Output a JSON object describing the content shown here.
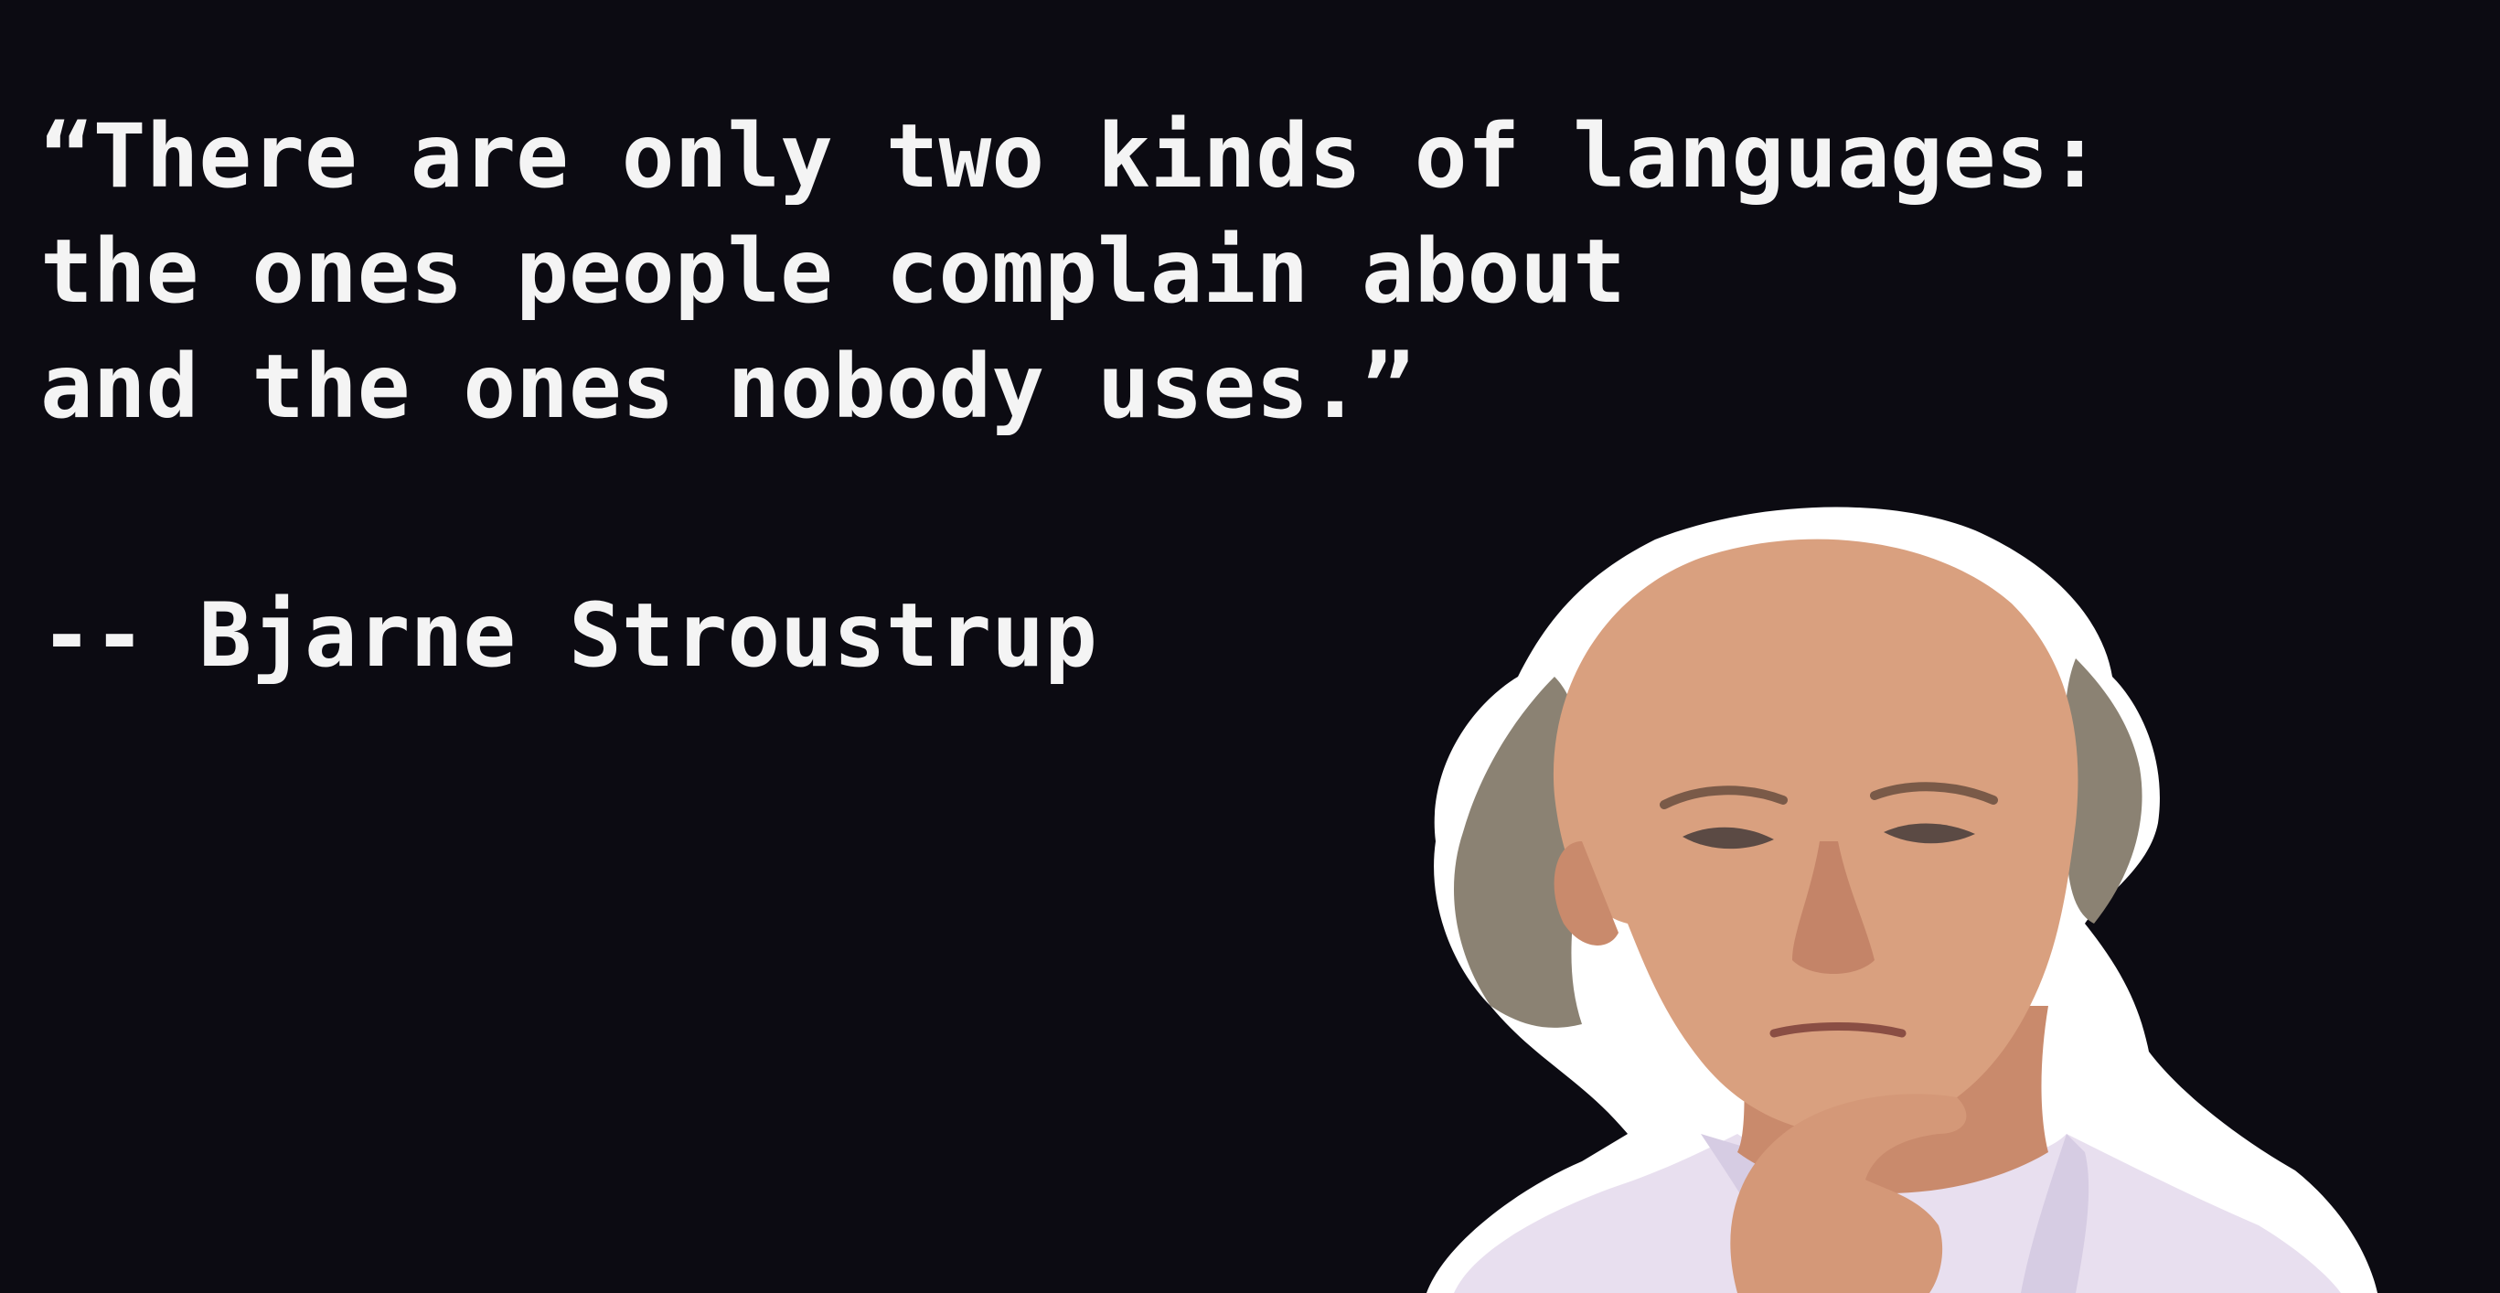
{
  "quote": {
    "lines": [
      "“There are only two kinds of languages:",
      "the ones people complain about",
      "and the ones nobody uses.”"
    ]
  },
  "attribution": {
    "text": "-- Bjarne Stroustrup"
  },
  "colors": {
    "background": "#0c0b12",
    "text": "#f4f4f4",
    "outline": "#ffffff",
    "skin": "#d9a07f",
    "hair": "#8a8070",
    "shirt": "#e9dff0"
  }
}
